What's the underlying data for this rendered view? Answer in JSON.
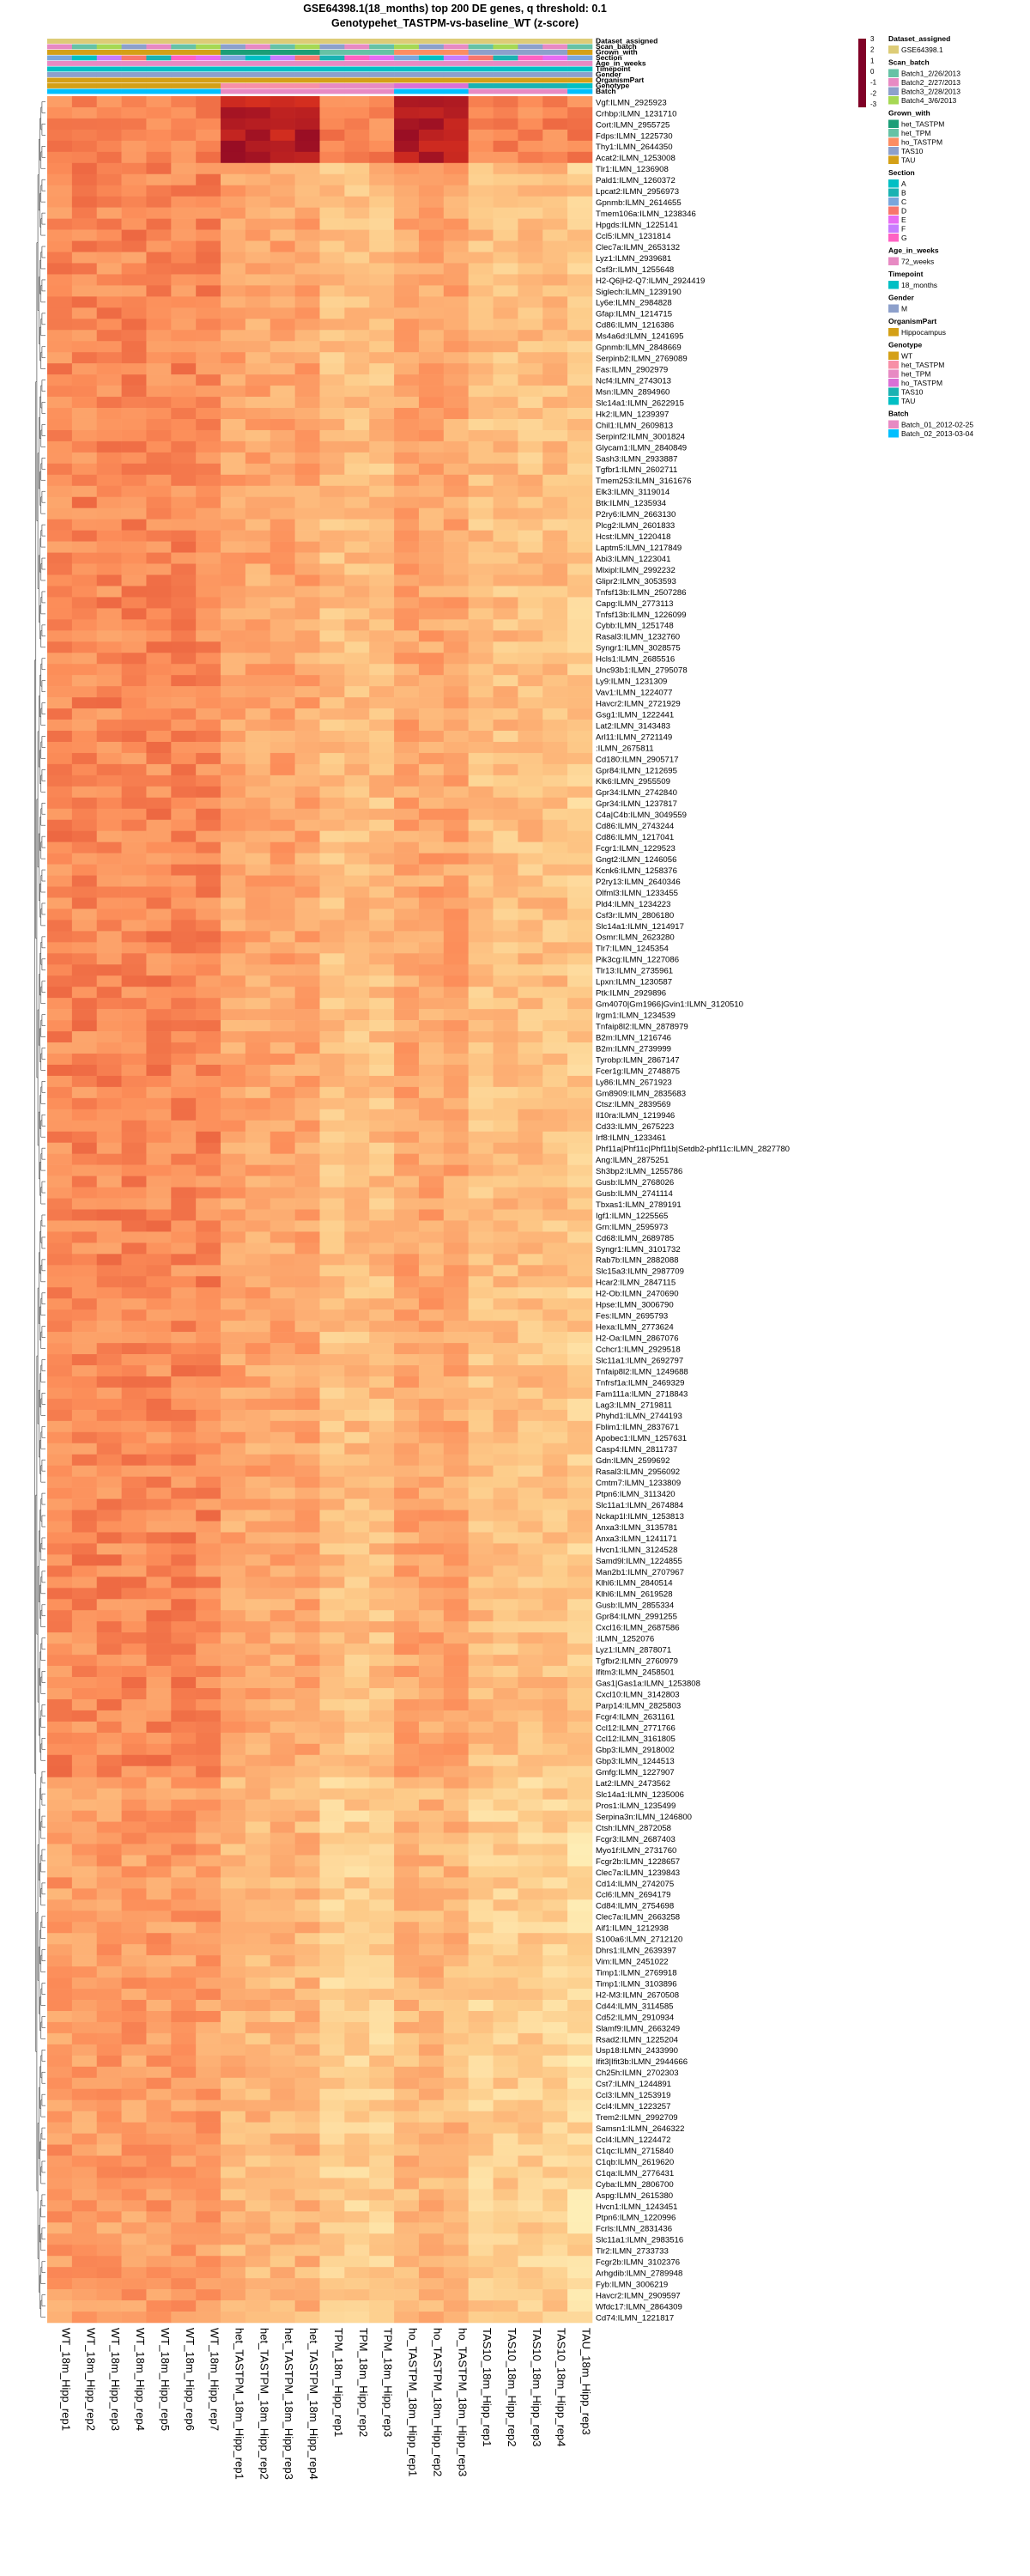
{
  "title_lines": [
    "GSE64398.1(18_months) top 200 DE genes, q threshold: 0.1",
    "Genotypehet_TASTPM-vs-baseline_WT  (z-score)"
  ],
  "annotation_tracks": [
    "Dataset_assigned",
    "Scan_batch",
    "Grown_with",
    "Section",
    "Age_in_weeks",
    "Timepoint",
    "Gender",
    "OrganismPart",
    "Genotype",
    "Batch"
  ],
  "color_scale": {
    "ticks": [
      3,
      2,
      1,
      0,
      -1,
      -2,
      -3
    ],
    "colors": [
      "#800026",
      "#d7301f",
      "#fc8d59",
      "#fdcc8a",
      "#ffffcc"
    ]
  },
  "legend": [
    {
      "title": "Dataset_assigned",
      "items": [
        {
          "label": "GSE64398.1",
          "color": "#ddcc77"
        }
      ]
    },
    {
      "title": "Scan_batch",
      "items": [
        {
          "label": "Batch1_2/26/2013",
          "color": "#66c2a5"
        },
        {
          "label": "Batch2_2/27/2013",
          "color": "#e78ac3"
        },
        {
          "label": "Batch3_2/28/2013",
          "color": "#8da0cb"
        },
        {
          "label": "Batch4_3/6/2013",
          "color": "#a6d854"
        }
      ]
    },
    {
      "title": "Grown_with",
      "items": [
        {
          "label": "het_TASTPM",
          "color": "#1b9e77"
        },
        {
          "label": "het_TPM",
          "color": "#66c2a5"
        },
        {
          "label": "ho_TASTPM",
          "color": "#fc8d62"
        },
        {
          "label": "TAS10",
          "color": "#8da0cb"
        },
        {
          "label": "TAU",
          "color": "#d4a017"
        }
      ]
    },
    {
      "title": "Section",
      "items": [
        {
          "label": "A",
          "color": "#00bfc4"
        },
        {
          "label": "B",
          "color": "#1ab2b2"
        },
        {
          "label": "C",
          "color": "#7aa6dc"
        },
        {
          "label": "D",
          "color": "#f8766d"
        },
        {
          "label": "E",
          "color": "#e76bf3"
        },
        {
          "label": "F",
          "color": "#c77cff"
        },
        {
          "label": "G",
          "color": "#ff61c3"
        }
      ]
    },
    {
      "title": "Age_in_weeks",
      "items": [
        {
          "label": "72_weeks",
          "color": "#e78ac3"
        }
      ]
    },
    {
      "title": "Timepoint",
      "items": [
        {
          "label": "18_months",
          "color": "#00bfc4"
        }
      ]
    },
    {
      "title": "Gender",
      "items": [
        {
          "label": "M",
          "color": "#8da0cb"
        }
      ]
    },
    {
      "title": "OrganismPart",
      "items": [
        {
          "label": "Hippocampus",
          "color": "#d4a017"
        }
      ]
    },
    {
      "title": "Genotype",
      "items": [
        {
          "label": "WT",
          "color": "#d4a017"
        },
        {
          "label": "het_TASTPM",
          "color": "#f78fa7"
        },
        {
          "label": "het_TPM",
          "color": "#e78ac3"
        },
        {
          "label": "ho_TASTPM",
          "color": "#da70d6"
        },
        {
          "label": "TAS10",
          "color": "#1ab2b2"
        },
        {
          "label": "TAU",
          "color": "#00bfc4"
        }
      ]
    },
    {
      "title": "Batch",
      "items": [
        {
          "label": "Batch_01_2012-02-25",
          "color": "#e78ac3"
        },
        {
          "label": "Batch_02_2013-03-04",
          "color": "#00bfff"
        }
      ]
    }
  ],
  "chart_data": {
    "type": "heatmap",
    "title": "GSE64398.1(18_months) top 200 DE genes, q threshold: 0.1 / Genotypehet_TASTPM-vs-baseline_WT  (z-score)",
    "columns": [
      "WT_18m_Hipp_rep1",
      "WT_18m_Hipp_rep2",
      "WT_18m_Hipp_rep3",
      "WT_18m_Hipp_rep4",
      "WT_18m_Hipp_rep5",
      "WT_18m_Hipp_rep6",
      "WT_18m_Hipp_rep7",
      "het_TASTPM_18m_Hipp_rep1",
      "het_TASTPM_18m_Hipp_rep2",
      "het_TASTPM_18m_Hipp_rep3",
      "het_TASTPM_18m_Hipp_rep4",
      "TPM_18m_Hipp_rep1",
      "TPM_18m_Hipp_rep2",
      "TPM_18m_Hipp_rep3",
      "ho_TASTPM_18m_Hipp_rep1",
      "ho_TASTPM_18m_Hipp_rep2",
      "ho_TASTPM_18m_Hipp_rep3",
      "TAS10_18m_Hipp_rep1",
      "TAS10_18m_Hipp_rep2",
      "TAS10_18m_Hipp_rep3",
      "TAS10_18m_Hipp_rep4",
      "TAU_18m_Hipp_rep3"
    ],
    "column_groups": {
      "Genotype": [
        "WT",
        "WT",
        "WT",
        "WT",
        "WT",
        "WT",
        "WT",
        "het_TASTPM",
        "het_TASTPM",
        "het_TASTPM",
        "het_TASTPM",
        "het_TPM",
        "het_TPM",
        "het_TPM",
        "ho_TASTPM",
        "ho_TASTPM",
        "ho_TASTPM",
        "TAS10",
        "TAS10",
        "TAS10",
        "TAS10",
        "TAU"
      ],
      "Batch": [
        "Batch_02_2013-03-04",
        "Batch_02_2013-03-04",
        "Batch_02_2013-03-04",
        "Batch_02_2013-03-04",
        "Batch_02_2013-03-04",
        "Batch_02_2013-03-04",
        "Batch_02_2013-03-04",
        "Batch_01_2012-02-25",
        "Batch_01_2012-02-25",
        "Batch_01_2012-02-25",
        "Batch_01_2012-02-25",
        "Batch_01_2012-02-25",
        "Batch_01_2012-02-25",
        "Batch_01_2012-02-25",
        "Batch_02_2013-03-04",
        "Batch_02_2013-03-04",
        "Batch_02_2013-03-04",
        "Batch_01_2012-02-25",
        "Batch_01_2012-02-25",
        "Batch_01_2012-02-25",
        "Batch_01_2012-02-25",
        "Batch_02_2013-03-04"
      ]
    },
    "rows": [
      "Vgf:ILMN_2925923",
      "Crhbp:ILMN_1231710",
      "Cort:ILMN_2955725",
      "Fdps:ILMN_1225730",
      "Thy1:ILMN_2644350",
      "Acat2:ILMN_1253008",
      "Tlr1:ILMN_1236908",
      "Pald1:ILMN_1260372",
      "Lpcat2:ILMN_2956973",
      "Gpnmb:ILMN_2614655",
      "Tmem106a:ILMN_1238346",
      "Hpgds:ILMN_1225141",
      "Ccl5:ILMN_1231814",
      "Clec7a:ILMN_2653132",
      "Lyz1:ILMN_2939681",
      "Csf3r:ILMN_1255648",
      "H2-Q6|H2-Q7:ILMN_2924419",
      "Siglech:ILMN_1239190",
      "Ly6e:ILMN_2984828",
      "Gfap:ILMN_1214715",
      "Cd86:ILMN_1216386",
      "Ms4a6d:ILMN_1241695",
      "Gpnmb:ILMN_2848669",
      "Serpinb2:ILMN_2769089",
      "Fas:ILMN_2902979",
      "Ncf4:ILMN_2743013",
      "Msn:ILMN_2894960",
      "Slc14a1:ILMN_2622915",
      "Hk2:ILMN_1239397",
      "Chil1:ILMN_2609813",
      "Serpinf2:ILMN_3001824",
      "Glycam1:ILMN_2840849",
      "Sash3:ILMN_2933887",
      "Tgfbr1:ILMN_2602711",
      "Tmem253:ILMN_3161676",
      "Elk3:ILMN_3119014",
      "Btk:ILMN_1235934",
      "P2ry6:ILMN_2663130",
      "Plcg2:ILMN_2601833",
      "Hcst:ILMN_1220418",
      "Laptm5:ILMN_1217849",
      "Abi3:ILMN_1223041",
      "Mlxipl:ILMN_2992232",
      "Glipr2:ILMN_3053593",
      "Tnfsf13b:ILMN_2507286",
      "Capg:ILMN_2773113",
      "Tnfsf13b:ILMN_1226099",
      "Cybb:ILMN_1251748",
      "Rasal3:ILMN_1232760",
      "Syngr1:ILMN_3028575",
      "Hcls1:ILMN_2685516",
      "Unc93b1:ILMN_2795078",
      "Ly9:ILMN_1231309",
      "Vav1:ILMN_1224077",
      "Havcr2:ILMN_2721929",
      "Gsg1:ILMN_1222441",
      "Lat2:ILMN_3143483",
      "Arl11:ILMN_2721149",
      ":ILMN_2675811",
      "Cd180:ILMN_2905717",
      "Gpr84:ILMN_1212695",
      "Klk6:ILMN_2955509",
      "Gpr34:ILMN_2742840",
      "Gpr34:ILMN_1237817",
      "C4a|C4b:ILMN_3049559",
      "Cd86:ILMN_2743244",
      "Cd86:ILMN_1217041",
      "Fcgr1:ILMN_1229523",
      "Gngt2:ILMN_1246056",
      "Kcnk6:ILMN_1258376",
      "P2ry13:ILMN_2640346",
      "Olfml3:ILMN_1233455",
      "Pld4:ILMN_1234223",
      "Csf3r:ILMN_2806180",
      "Slc14a1:ILMN_1214917",
      "Osmr:ILMN_2623280",
      "Tlr7:ILMN_1245354",
      "Pik3cg:ILMN_1227086",
      "Tlr13:ILMN_2735961",
      "Lpxn:ILMN_1230587",
      "Ptk:ILMN_2929896",
      "Gm4070|Gm1966|Gvin1:ILMN_3120510",
      "Irgm1:ILMN_1234539",
      "Tnfaip8l2:ILMN_2878979",
      "B2m:ILMN_1216746",
      "B2m:ILMN_2739999",
      "Tyrobp:ILMN_2867147",
      "Fcer1g:ILMN_2748875",
      "Ly86:ILMN_2671923",
      "Gm8909:ILMN_2835683",
      "Ctsz:ILMN_2839569",
      "Il10ra:ILMN_1219946",
      "Cd33:ILMN_2675223",
      "Irf8:ILMN_1233461",
      "Phf11a|Phf11c|Phf11b|Setdb2-phf11c:ILMN_2827780",
      "Ang:ILMN_2875251",
      "Sh3bp2:ILMN_1255786",
      "Gusb:ILMN_2768026",
      "Gusb:ILMN_2741114",
      "Tbxas1:ILMN_2789191",
      "Igf1:ILMN_1225565",
      "Grn:ILMN_2595973",
      "Cd68:ILMN_2689785",
      "Syngr1:ILMN_3101732",
      "Rab7b:ILMN_2882088",
      "Slc15a3:ILMN_2987709",
      "Hcar2:ILMN_2847115",
      "H2-Ob:ILMN_2470690",
      "Hpse:ILMN_3006790",
      "Fes:ILMN_2695793",
      "Hexa:ILMN_2773624",
      "H2-Oa:ILMN_2867076",
      "Cchcr1:ILMN_2929518",
      "Slc11a1:ILMN_2692797",
      "Tnfaip8l2:ILMN_1249688",
      "Tnfrsf1a:ILMN_2469329",
      "Fam111a:ILMN_2718843",
      "Lag3:ILMN_2719811",
      "Phyhd1:ILMN_2744193",
      "Fblim1:ILMN_2837671",
      "Apobec1:ILMN_1257631",
      "Casp4:ILMN_2811737",
      "Gdn:ILMN_2599692",
      "Rasal3:ILMN_2956092",
      "Cmtm7:ILMN_1233809",
      "Ptpn6:ILMN_3113420",
      "Slc11a1:ILMN_2674884",
      "Nckap1l:ILMN_1253813",
      "Anxa3:ILMN_3135781",
      "Anxa3:ILMN_1241171",
      "Hvcn1:ILMN_3124528",
      "Samd9l:ILMN_1224855",
      "Man2b1:ILMN_2707967",
      "Klhl6:ILMN_2840514",
      "Klhl6:ILMN_2619528",
      "Gusb:ILMN_2855334",
      "Gpr84:ILMN_2991255",
      "Cxcl16:ILMN_2687586",
      ":ILMN_1252076",
      "Lyz1:ILMN_2878071",
      "Tgfbr2:ILMN_2760979",
      "Ifitm3:ILMN_2458501",
      "Gas1|Gas1a:ILMN_1253808",
      "Cxcl10:ILMN_3142803",
      "Parp14:ILMN_2825803",
      "Fcgr4:ILMN_2631161",
      "Ccl12:ILMN_2771766",
      "Ccl12:ILMN_3161805",
      "Gbp3:ILMN_2918002",
      "Gbp3:ILMN_1244513",
      "Gmfg:ILMN_1227907",
      "Lat2:ILMN_2473562",
      "Slc14a1:ILMN_1235006",
      "Pros1:ILMN_1235499",
      "Serpina3n:ILMN_1246800",
      "Ctsh:ILMN_2872058",
      "Fcgr3:ILMN_2687403",
      "Myo1f:ILMN_2731760",
      "Fcgr2b:ILMN_1228657",
      "Clec7a:ILMN_1239843",
      "Cd14:ILMN_2742075",
      "Ccl6:ILMN_2694179",
      "Cd84:ILMN_2754698",
      "Clec7a:ILMN_2663258",
      "Aif1:ILMN_1212938",
      "S100a6:ILMN_2712120",
      "Dhrs1:ILMN_2639397",
      "Vim:ILMN_2451022",
      "Timp1:ILMN_2769918",
      "Timp1:ILMN_3103896",
      "H2-M3:ILMN_2670508",
      "Cd44:ILMN_3114585",
      "Cd52:ILMN_2910934",
      "Slamf9:ILMN_2663249",
      "Rsad2:ILMN_1225204",
      "Usp18:ILMN_2433990",
      "Ifit3|Ifit3b:ILMN_2944666",
      "Ch25h:ILMN_2702303",
      "Cst7:ILMN_1244891",
      "Ccl3:ILMN_1253919",
      "Ccl4:ILMN_1223257",
      "Trem2:ILMN_2992709",
      "Samsn1:ILMN_2646322",
      "Ccl4:ILMN_1224472",
      "C1qc:ILMN_2715840",
      "C1qb:ILMN_2619620",
      "C1qa:ILMN_2776431",
      "Cyba:ILMN_2806700",
      "Aspg:ILMN_2615380",
      "Hvcn1:ILMN_1243451",
      "Ptpn6:ILMN_1220996",
      "Fcrls:ILMN_2831436",
      "Slc11a1:ILMN_2983516",
      "Tlr2:ILMN_2733733",
      "Fcgr2b:ILMN_3102376",
      "Arhgdib:ILMN_2789948",
      "Fyb:ILMN_3006219",
      "Havcr2:ILMN_2909597",
      "Wfdc17:ILMN_2864309",
      "Cd74:ILMN_1221817"
    ],
    "value_range": [
      -3,
      3
    ],
    "legend_position": "top-right"
  }
}
